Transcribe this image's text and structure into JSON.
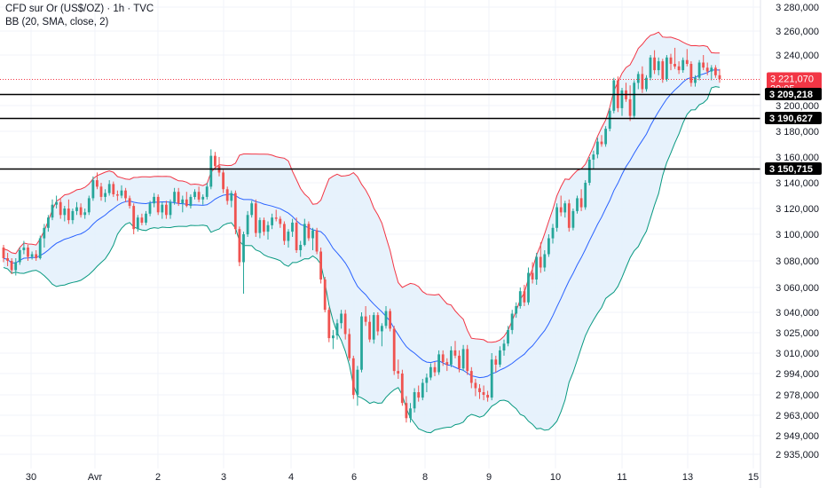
{
  "header": {
    "symbol": "CFD sur Or (US$/OZ) · 1h · TVC",
    "indicator": "BB (20, SMA, close, 2)"
  },
  "colors": {
    "up": "#26a69a",
    "down": "#ef5350",
    "basis": "#2962ff",
    "upper_band": "#f23645",
    "lower_band": "#089981",
    "band_fill": "#e3f0fb",
    "price_label_bg": "#f23645",
    "hline": "#000000"
  },
  "price_tag": {
    "value": "3 221,070",
    "countdown": "29:05"
  },
  "chart_data": {
    "type": "candlestick",
    "y_axis_ticks": [
      "3 280,000",
      "3 260,000",
      "3 240,000",
      "3 200,000",
      "3 180,000",
      "3 160,000",
      "3 140,000",
      "3 120,000",
      "3 100,000",
      "3 080,000",
      "3 060,000",
      "3 040,000",
      "3 025,000",
      "3 010,000",
      "2 994,000",
      "2 978,000",
      "2 963,000",
      "2 949,000",
      "2 935,000"
    ],
    "x_axis_ticks": [
      "30",
      "Avr",
      "2",
      "3",
      "4",
      "6",
      "8",
      "9",
      "10",
      "11",
      "13",
      "15"
    ],
    "horizontal_levels": [
      {
        "label": "3 209,218",
        "value": 3209.218
      },
      {
        "label": "3 190,627",
        "value": 3190.627
      },
      {
        "label": "3 150,715",
        "value": 3150.715
      }
    ],
    "last_price": 3221.07,
    "scale_anchors": [
      {
        "price": 3280,
        "y": 8
      },
      {
        "price": 3260,
        "y": 35
      },
      {
        "price": 3240,
        "y": 62
      },
      {
        "price": 3200,
        "y": 119
      },
      {
        "price": 3180,
        "y": 148
      },
      {
        "price": 3160,
        "y": 177
      },
      {
        "price": 3140,
        "y": 206
      },
      {
        "price": 3120,
        "y": 235
      },
      {
        "price": 3100,
        "y": 264
      },
      {
        "price": 3080,
        "y": 294
      },
      {
        "price": 3060,
        "y": 324
      },
      {
        "price": 3040,
        "y": 352
      },
      {
        "price": 3025,
        "y": 375
      },
      {
        "price": 3010,
        "y": 398
      },
      {
        "price": 2994,
        "y": 421
      },
      {
        "price": 2978,
        "y": 445
      },
      {
        "price": 2963,
        "y": 468
      },
      {
        "price": 2949,
        "y": 491
      },
      {
        "price": 2935,
        "y": 512
      }
    ],
    "candles": [
      [
        3090,
        3092,
        3079,
        3082
      ],
      [
        3082,
        3086,
        3076,
        3080
      ],
      [
        3080,
        3082,
        3070,
        3073
      ],
      [
        3073,
        3082,
        3069,
        3079
      ],
      [
        3079,
        3090,
        3077,
        3088
      ],
      [
        3088,
        3095,
        3085,
        3090
      ],
      [
        3090,
        3092,
        3080,
        3083
      ],
      [
        3083,
        3087,
        3081,
        3085
      ],
      [
        3085,
        3088,
        3080,
        3082
      ],
      [
        3082,
        3099,
        3081,
        3097
      ],
      [
        3097,
        3108,
        3090,
        3105
      ],
      [
        3105,
        3115,
        3102,
        3113
      ],
      [
        3113,
        3127,
        3111,
        3123
      ],
      [
        3123,
        3130,
        3120,
        3125
      ],
      [
        3125,
        3128,
        3112,
        3115
      ],
      [
        3115,
        3122,
        3110,
        3120
      ],
      [
        3120,
        3127,
        3108,
        3111
      ],
      [
        3111,
        3120,
        3108,
        3118
      ],
      [
        3118,
        3125,
        3115,
        3121
      ],
      [
        3121,
        3124,
        3113,
        3115
      ],
      [
        3115,
        3120,
        3112,
        3117
      ],
      [
        3117,
        3130,
        3115,
        3128
      ],
      [
        3128,
        3145,
        3126,
        3142
      ],
      [
        3142,
        3148,
        3135,
        3137
      ],
      [
        3137,
        3140,
        3126,
        3129
      ],
      [
        3129,
        3135,
        3125,
        3132
      ],
      [
        3132,
        3142,
        3130,
        3139
      ],
      [
        3139,
        3141,
        3129,
        3131
      ],
      [
        3131,
        3134,
        3126,
        3130
      ],
      [
        3130,
        3138,
        3128,
        3134
      ],
      [
        3134,
        3136,
        3125,
        3128
      ],
      [
        3128,
        3130,
        3120,
        3122
      ],
      [
        3122,
        3124,
        3100,
        3104
      ],
      [
        3104,
        3115,
        3102,
        3113
      ],
      [
        3113,
        3116,
        3107,
        3109
      ],
      [
        3109,
        3118,
        3107,
        3116
      ],
      [
        3116,
        3126,
        3114,
        3124
      ],
      [
        3124,
        3132,
        3121,
        3129
      ],
      [
        3129,
        3131,
        3115,
        3117
      ],
      [
        3117,
        3125,
        3112,
        3123
      ],
      [
        3123,
        3126,
        3112,
        3115
      ],
      [
        3115,
        3127,
        3112,
        3125
      ],
      [
        3125,
        3136,
        3123,
        3133
      ],
      [
        3133,
        3136,
        3122,
        3124
      ],
      [
        3124,
        3130,
        3117,
        3127
      ],
      [
        3127,
        3133,
        3121,
        3122
      ],
      [
        3122,
        3131,
        3120,
        3129
      ],
      [
        3129,
        3135,
        3127,
        3133
      ],
      [
        3133,
        3137,
        3125,
        3127
      ],
      [
        3127,
        3131,
        3123,
        3129
      ],
      [
        3129,
        3140,
        3127,
        3137
      ],
      [
        3137,
        3166,
        3135,
        3161
      ],
      [
        3161,
        3164,
        3150,
        3153
      ],
      [
        3153,
        3160,
        3145,
        3148
      ],
      [
        3148,
        3150,
        3132,
        3135
      ],
      [
        3135,
        3137,
        3123,
        3126
      ],
      [
        3126,
        3134,
        3121,
        3132
      ],
      [
        3132,
        3134,
        3100,
        3104
      ],
      [
        3104,
        3106,
        3076,
        3079
      ],
      [
        3079,
        3102,
        3055,
        3100
      ],
      [
        3100,
        3118,
        3098,
        3115
      ],
      [
        3115,
        3126,
        3113,
        3124
      ],
      [
        3124,
        3127,
        3098,
        3101
      ],
      [
        3101,
        3113,
        3097,
        3111
      ],
      [
        3111,
        3113,
        3099,
        3102
      ],
      [
        3102,
        3110,
        3096,
        3107
      ],
      [
        3107,
        3116,
        3104,
        3113
      ],
      [
        3113,
        3119,
        3110,
        3112
      ],
      [
        3112,
        3114,
        3105,
        3108
      ],
      [
        3108,
        3110,
        3092,
        3095
      ],
      [
        3095,
        3104,
        3090,
        3102
      ],
      [
        3102,
        3112,
        3098,
        3109
      ],
      [
        3109,
        3113,
        3086,
        3088
      ],
      [
        3088,
        3095,
        3083,
        3092
      ],
      [
        3092,
        3112,
        3091,
        3108
      ],
      [
        3108,
        3110,
        3095,
        3097
      ],
      [
        3097,
        3105,
        3088,
        3103
      ],
      [
        3103,
        3105,
        3085,
        3087
      ],
      [
        3087,
        3090,
        3063,
        3066
      ],
      [
        3066,
        3068,
        3040,
        3042
      ],
      [
        3042,
        3044,
        3018,
        3021
      ],
      [
        3021,
        3027,
        3013,
        3023
      ],
      [
        3023,
        3035,
        3020,
        3032
      ],
      [
        3032,
        3042,
        3028,
        3039
      ],
      [
        3039,
        3042,
        3020,
        3024
      ],
      [
        3024,
        3028,
        3004,
        3006
      ],
      [
        3006,
        3008,
        2975,
        2978
      ],
      [
        2978,
        3000,
        2970,
        2997
      ],
      [
        2997,
        3040,
        2995,
        3037
      ],
      [
        3037,
        3045,
        3030,
        3033
      ],
      [
        3033,
        3038,
        3018,
        3020
      ],
      [
        3020,
        3040,
        3017,
        3038
      ],
      [
        3038,
        3040,
        3023,
        3026
      ],
      [
        3026,
        3032,
        3015,
        3030
      ],
      [
        3030,
        3045,
        3028,
        3041
      ],
      [
        3041,
        3043,
        3026,
        3028
      ],
      [
        3028,
        3030,
        2993,
        2996
      ],
      [
        2996,
        3005,
        2990,
        2994
      ],
      [
        2994,
        2997,
        2970,
        2972
      ],
      [
        2972,
        2977,
        2958,
        2961
      ],
      [
        2961,
        2972,
        2958,
        2968
      ],
      [
        2968,
        2983,
        2965,
        2980
      ],
      [
        2980,
        2985,
        2973,
        2976
      ],
      [
        2976,
        2990,
        2974,
        2987
      ],
      [
        2987,
        2994,
        2980,
        2991
      ],
      [
        2991,
        3002,
        2989,
        2999
      ],
      [
        2999,
        3003,
        2992,
        2995
      ],
      [
        2995,
        3012,
        2993,
        3009
      ],
      [
        3009,
        3012,
        3000,
        3003
      ],
      [
        3003,
        3006,
        2996,
        3001
      ],
      [
        3001,
        3015,
        2999,
        3012
      ],
      [
        3012,
        3019,
        3006,
        3008
      ],
      [
        3008,
        3012,
        2995,
        2998
      ],
      [
        2998,
        3016,
        2996,
        3013
      ],
      [
        3013,
        3016,
        2993,
        2996
      ],
      [
        2996,
        2999,
        2983,
        2987
      ],
      [
        2987,
        2990,
        2977,
        2983
      ],
      [
        2983,
        2986,
        2975,
        2980
      ],
      [
        2980,
        2985,
        2974,
        2978
      ],
      [
        2978,
        2981,
        2973,
        2976
      ],
      [
        2976,
        3010,
        2974,
        3005
      ],
      [
        3005,
        3008,
        2995,
        3001
      ],
      [
        3001,
        3015,
        2999,
        3012
      ],
      [
        3012,
        3020,
        3008,
        3017
      ],
      [
        3017,
        3030,
        3015,
        3027
      ],
      [
        3027,
        3042,
        3024,
        3039
      ],
      [
        3039,
        3048,
        3036,
        3045
      ],
      [
        3045,
        3060,
        3043,
        3057
      ],
      [
        3057,
        3062,
        3045,
        3048
      ],
      [
        3048,
        3075,
        3046,
        3071
      ],
      [
        3071,
        3079,
        3063,
        3066
      ],
      [
        3066,
        3086,
        3062,
        3083
      ],
      [
        3083,
        3094,
        3071,
        3075
      ],
      [
        3075,
        3088,
        3072,
        3085
      ],
      [
        3085,
        3100,
        3083,
        3097
      ],
      [
        3097,
        3108,
        3093,
        3105
      ],
      [
        3105,
        3124,
        3102,
        3121
      ],
      [
        3121,
        3130,
        3114,
        3117
      ],
      [
        3117,
        3126,
        3113,
        3124
      ],
      [
        3124,
        3127,
        3102,
        3105
      ],
      [
        3105,
        3120,
        3103,
        3118
      ],
      [
        3118,
        3130,
        3116,
        3128
      ],
      [
        3128,
        3135,
        3118,
        3121
      ],
      [
        3121,
        3142,
        3119,
        3140
      ],
      [
        3140,
        3160,
        3138,
        3158
      ],
      [
        3158,
        3165,
        3151,
        3162
      ],
      [
        3162,
        3175,
        3159,
        3172
      ],
      [
        3172,
        3177,
        3168,
        3170
      ],
      [
        3170,
        3184,
        3168,
        3182
      ],
      [
        3182,
        3198,
        3180,
        3196
      ],
      [
        3196,
        3222,
        3194,
        3220
      ],
      [
        3220,
        3223,
        3195,
        3198
      ],
      [
        3198,
        3214,
        3192,
        3212
      ],
      [
        3212,
        3218,
        3203,
        3205
      ],
      [
        3205,
        3216,
        3188,
        3192
      ],
      [
        3192,
        3220,
        3190,
        3218
      ],
      [
        3218,
        3227,
        3213,
        3225
      ],
      [
        3225,
        3231,
        3210,
        3213
      ],
      [
        3213,
        3224,
        3211,
        3222
      ],
      [
        3222,
        3240,
        3220,
        3238
      ],
      [
        3238,
        3244,
        3225,
        3228
      ],
      [
        3228,
        3238,
        3224,
        3235
      ],
      [
        3235,
        3237,
        3218,
        3221
      ],
      [
        3221,
        3240,
        3219,
        3238
      ],
      [
        3238,
        3241,
        3228,
        3233
      ],
      [
        3233,
        3246,
        3229,
        3231
      ],
      [
        3231,
        3235,
        3225,
        3228
      ],
      [
        3228,
        3238,
        3226,
        3236
      ],
      [
        3236,
        3245,
        3231,
        3233
      ],
      [
        3233,
        3235,
        3215,
        3218
      ],
      [
        3218,
        3224,
        3215,
        3222
      ],
      [
        3222,
        3236,
        3220,
        3234
      ],
      [
        3234,
        3240,
        3228,
        3230
      ],
      [
        3230,
        3234,
        3224,
        3227
      ],
      [
        3227,
        3232,
        3220,
        3230
      ],
      [
        3230,
        3232,
        3222,
        3224
      ],
      [
        3224,
        3229,
        3218,
        3221
      ]
    ]
  }
}
